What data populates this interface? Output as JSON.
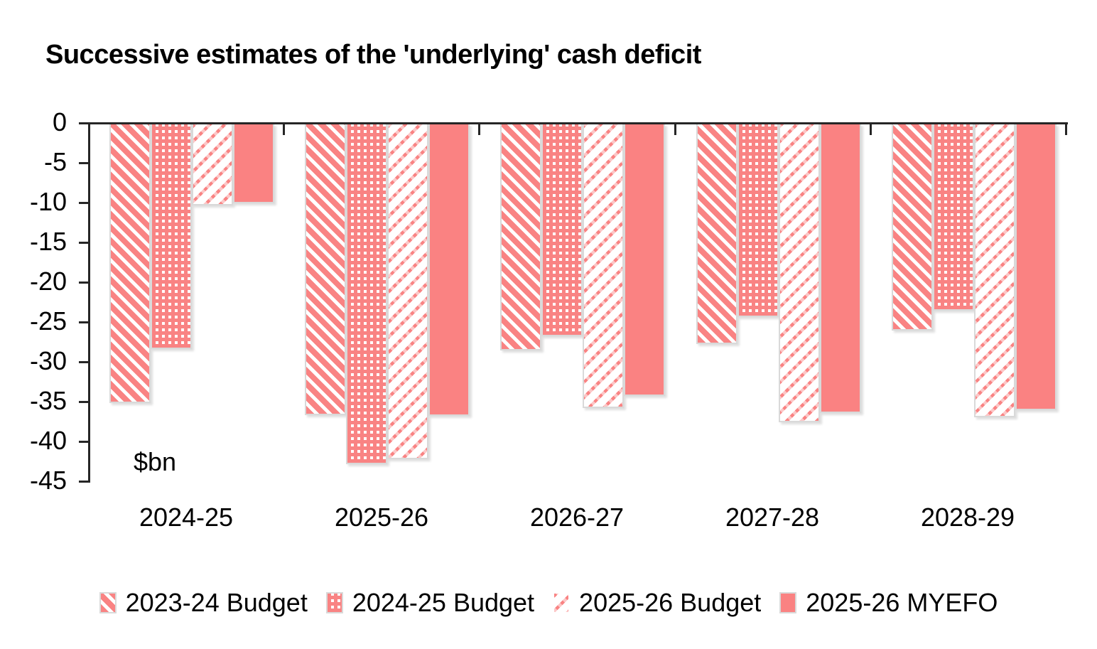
{
  "title": "Successive estimates of the 'underlying' cash deficit",
  "unit_label": "$bn",
  "colors": {
    "series_pink": "#f98383",
    "series_pink_solid": "#fa8282",
    "bar_outline": "#d9d9d9",
    "axis": "#262626",
    "text": "#000000"
  },
  "chart_data": {
    "type": "bar",
    "title": "Successive estimates of the 'underlying' cash deficit",
    "ylabel": "$bn",
    "ylim": [
      -45,
      0
    ],
    "ytick_interval": 5,
    "ytick_labels": [
      "0",
      "-5",
      "-10",
      "-15",
      "-20",
      "-25",
      "-30",
      "-35",
      "-40",
      "-45"
    ],
    "grid": false,
    "legend_position": "bottom",
    "categories": [
      "2024-25",
      "2025-26",
      "2026-27",
      "2027-28",
      "2028-29"
    ],
    "series": [
      {
        "name": "2023-24 Budget",
        "pattern": "heavy-diagonal",
        "values": [
          -35.1,
          -36.6,
          -28.5,
          -27.7,
          -26.0
        ]
      },
      {
        "name": "2024-25 Budget",
        "pattern": "dotted-grid",
        "values": [
          -28.3,
          -42.8,
          -26.7,
          -24.3,
          -23.5
        ]
      },
      {
        "name": "2025-26 Budget",
        "pattern": "light-diagonal",
        "values": [
          -10.3,
          -42.1,
          -35.7,
          -37.5,
          -36.9
        ]
      },
      {
        "name": "2025-26 MYEFO",
        "pattern": "solid",
        "values": [
          -10.0,
          -36.7,
          -34.2,
          -36.3,
          -36.0
        ]
      }
    ]
  }
}
